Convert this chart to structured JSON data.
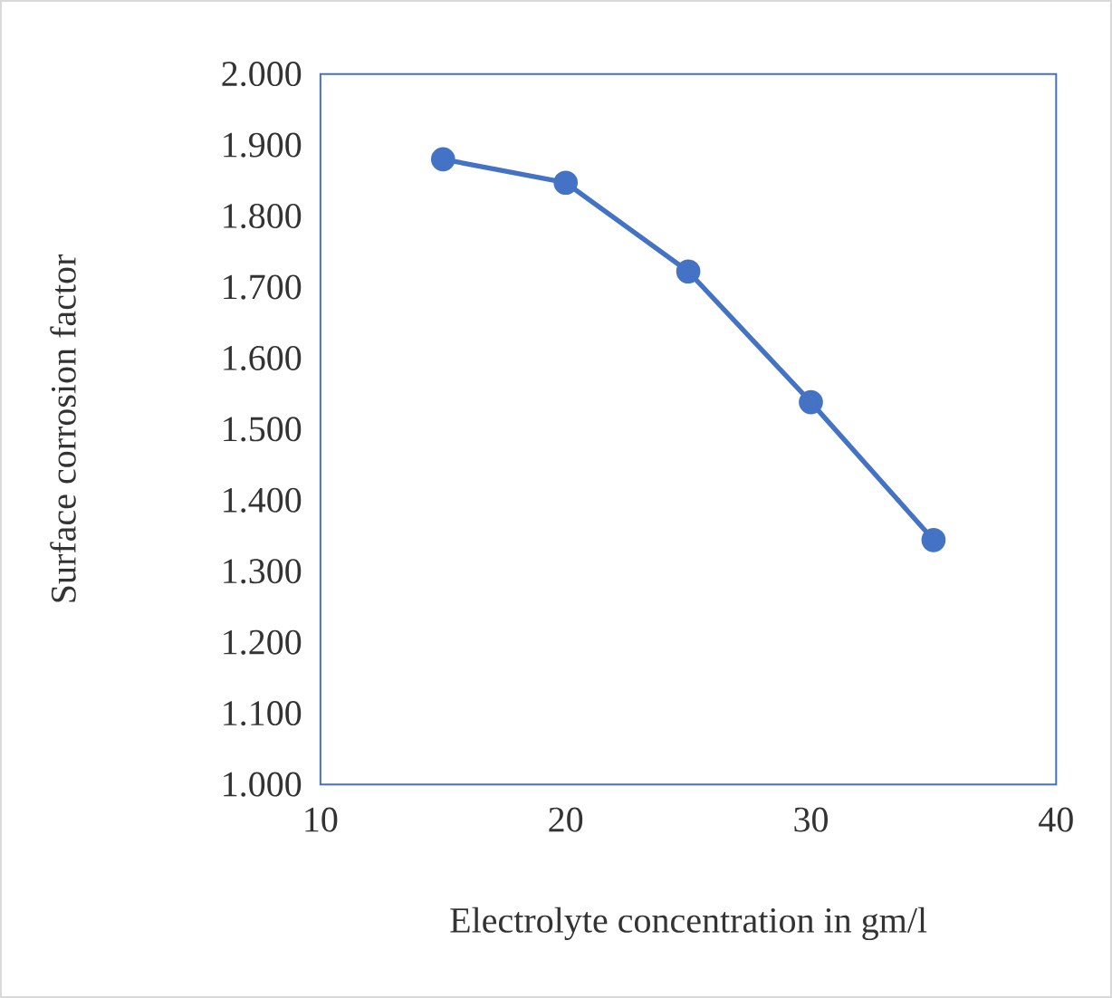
{
  "chart_data": {
    "type": "line",
    "xlabel": "Electrolyte concentration in gm/l",
    "ylabel": "Surface corrosion factor",
    "x": [
      15,
      20,
      25,
      30,
      35
    ],
    "series": [
      {
        "color": "#4472c4",
        "values": [
          1.88,
          1.847,
          1.722,
          1.538,
          1.344
        ]
      }
    ],
    "xlim": [
      10,
      40
    ],
    "xticks": [
      10,
      20,
      30,
      40
    ],
    "ylim": [
      1.0,
      2.0
    ],
    "yticks": [
      {
        "value": 1.0,
        "label": "1.000"
      },
      {
        "value": 1.1,
        "label": "1.100"
      },
      {
        "value": 1.2,
        "label": "1.200"
      },
      {
        "value": 1.3,
        "label": "1.300"
      },
      {
        "value": 1.4,
        "label": "1.400"
      },
      {
        "value": 1.5,
        "label": "1.500"
      },
      {
        "value": 1.6,
        "label": "1.600"
      },
      {
        "value": 1.7,
        "label": "1.700"
      },
      {
        "value": 1.8,
        "label": "1.800"
      },
      {
        "value": 1.9,
        "label": "1.900"
      },
      {
        "value": 2.0,
        "label": "2.000"
      }
    ],
    "grid": false,
    "marker": "circle",
    "line_style": "solid"
  }
}
